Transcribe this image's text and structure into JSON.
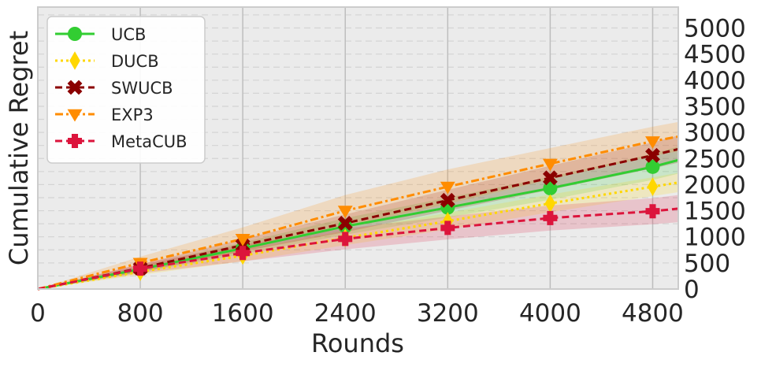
{
  "chart_data": {
    "type": "line",
    "xlabel": "Rounds",
    "ylabel": "Cumulative Regret",
    "xlim": [
      0,
      5000
    ],
    "ylim": [
      0,
      5400
    ],
    "x_ticks": [
      0,
      800,
      1600,
      2400,
      3200,
      4000,
      4800
    ],
    "x_tick_labels": [
      "0",
      "800",
      "1600",
      "2400",
      "3200",
      "4000",
      "4800"
    ],
    "y_ticks": [
      0,
      500,
      1000,
      1500,
      2000,
      2500,
      3000,
      3500,
      4000,
      4500,
      5000
    ],
    "y_tick_labels": [
      "0",
      "500",
      "1000",
      "1500",
      "2000",
      "2500",
      "3000",
      "3500",
      "4000",
      "4500",
      "5000"
    ],
    "y_axis_side": "right",
    "grid": true,
    "legend_position": "upper-left",
    "series": [
      {
        "name": "UCB",
        "color": "#32cd32",
        "linestyle": "solid",
        "marker": "circle",
        "x": [
          0,
          800,
          1600,
          2400,
          3200,
          4000,
          4800,
          5000
        ],
        "y": [
          0,
          380,
          780,
          1200,
          1560,
          1930,
          2340,
          2470
        ],
        "band": [
          0,
          60,
          110,
          160,
          190,
          220,
          250,
          260
        ]
      },
      {
        "name": "DUCB",
        "color": "#ffd700",
        "linestyle": "dotted",
        "marker": "diamond",
        "x": [
          0,
          800,
          1600,
          2400,
          3200,
          4000,
          4800,
          5000
        ],
        "y": [
          0,
          330,
          640,
          980,
          1300,
          1640,
          1960,
          2040
        ],
        "band": [
          0,
          60,
          110,
          140,
          160,
          170,
          180,
          185
        ]
      },
      {
        "name": "SWUCB",
        "color": "#8b0000",
        "linestyle": "dashed",
        "marker": "x",
        "x": [
          0,
          800,
          1600,
          2400,
          3200,
          4000,
          4800,
          5000
        ],
        "y": [
          0,
          400,
          840,
          1260,
          1700,
          2130,
          2560,
          2680
        ],
        "band": [
          0,
          70,
          120,
          170,
          200,
          230,
          250,
          260
        ]
      },
      {
        "name": "EXP3",
        "color": "#ff8c00",
        "linestyle": "dashdot",
        "marker": "triangle-down",
        "x": [
          0,
          800,
          1600,
          2400,
          3200,
          4000,
          4800,
          5000
        ],
        "y": [
          0,
          500,
          960,
          1500,
          1960,
          2400,
          2830,
          2920
        ],
        "band": [
          0,
          120,
          220,
          300,
          330,
          300,
          280,
          280
        ]
      },
      {
        "name": "MetaCUB",
        "color": "#dc143c",
        "linestyle": "dashed",
        "marker": "plus",
        "x": [
          0,
          800,
          1600,
          2400,
          3200,
          4000,
          4800,
          5000
        ],
        "y": [
          0,
          390,
          690,
          960,
          1170,
          1360,
          1490,
          1540
        ],
        "band": [
          0,
          90,
          160,
          200,
          220,
          240,
          250,
          260
        ]
      }
    ]
  }
}
